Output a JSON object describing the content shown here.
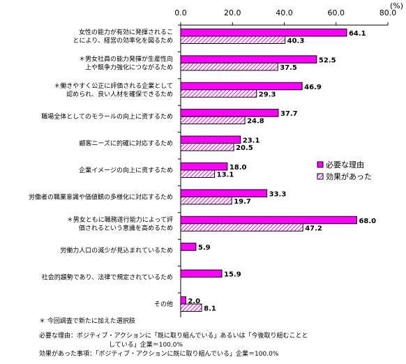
{
  "chart_data": {
    "type": "bar",
    "orientation": "horizontal",
    "unit": "(%)",
    "xlim": [
      0,
      80
    ],
    "ticks": [
      "0.0",
      "20.0",
      "40.0",
      "60.0",
      "80.0"
    ],
    "grid": false,
    "legend_position": "right",
    "categories": [
      [
        "女性の能力が有効に発揮されるこ",
        "とにより、経営の効率化を図るため"
      ],
      [
        "＊男女社員の能力発揮が生産性向",
        "上や競争力強化につながるため"
      ],
      [
        "＊働きやすく公正に評価される企業として",
        "認められ、良い人材を確保できるため"
      ],
      [
        "職場全体としてのモラールの向上に资するため"
      ],
      [
        "顧客ニーズに的確に対応するため"
      ],
      [
        "企業イメージの向上に资するため"
      ],
      [
        "労働者の職業意識や価値観の多様化に対応するため"
      ],
      [
        "＊男女ともに職務遂行能力によって評",
        "価されるという意識を高めるため"
      ],
      [
        "労働力人口の減少が見込まれているため"
      ],
      [
        "社会的趨勢であり、法律で規定されているため"
      ],
      [
        "その他"
      ]
    ],
    "series": [
      {
        "name": "必要な理由",
        "values": [
          64.1,
          52.5,
          46.9,
          37.7,
          23.1,
          18.0,
          33.3,
          68.0,
          5.9,
          15.9,
          2.0
        ]
      },
      {
        "name": "効果があった",
        "values": [
          40.3,
          37.5,
          29.3,
          24.8,
          20.5,
          13.1,
          19.7,
          47.2,
          null,
          null,
          8.1
        ]
      }
    ],
    "value_labels": [
      [
        "64.1",
        "52.5",
        "46.9",
        "37.7",
        "23.1",
        "18.0",
        "33.3",
        "68.0",
        "5.9",
        "15.9",
        "2.0"
      ],
      [
        "40.3",
        "37.5",
        "29.3",
        "24.8",
        "20.5",
        "13.1",
        "19.7",
        "47.2",
        null,
        null,
        "8.1"
      ]
    ],
    "colors": {
      "series1": "#ff00ff",
      "series2_hatch": "#ff00ff",
      "outline": "#000000"
    }
  },
  "notes": {
    "asterisk": "＊ 今回調査で新たに加えた選択肢",
    "note1_line1": "必要な理由：ポジティブ・アクションに「既に取り組んでいる」あるいは「今後取り組むことと",
    "note1_line2": "している」企業＝100.0%",
    "note2": "効果があった事項：「ポジティブ・アクションに既に取り組んでいる」企業＝100.0%"
  }
}
